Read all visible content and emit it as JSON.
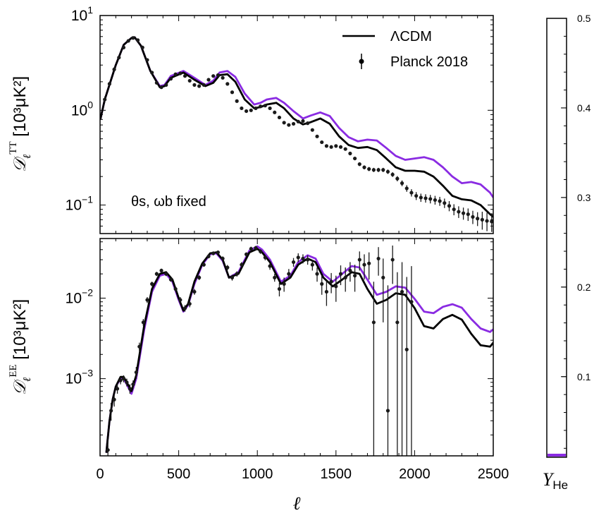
{
  "chart_data": [
    {
      "type": "line",
      "panel": "top",
      "ylabel_main": "𝒟",
      "ylabel_sub": "ℓ",
      "ylabel_sup": "TT",
      "ylabel_units": " [10³μK²]",
      "yscale": "log",
      "xlim": [
        0,
        2500
      ],
      "ylim": [
        0.05,
        10
      ],
      "yticks": [
        {
          "base": "10",
          "exp": "1",
          "value": 10
        },
        {
          "base": "10",
          "exp": "0",
          "value": 1
        },
        {
          "base": "10",
          "exp": "−1",
          "value": 0.1
        }
      ],
      "annotation": "θs, ωb fixed",
      "legend_position": "top-right",
      "legend": [
        {
          "label": "ΛCDM",
          "kind": "line"
        },
        {
          "label": "Planck 2018",
          "kind": "errorbar"
        }
      ],
      "series": [
        {
          "name": "ΛCDM",
          "color": "#000000",
          "x": [
            2,
            30,
            100,
            150,
            200,
            220,
            260,
            320,
            380,
            410,
            450,
            530,
            600,
            670,
            720,
            760,
            810,
            860,
            920,
            980,
            1020,
            1060,
            1120,
            1170,
            1230,
            1290,
            1340,
            1400,
            1460,
            1520,
            1580,
            1640,
            1700,
            1760,
            1820,
            1880,
            1940,
            2000,
            2060,
            2120,
            2180,
            2240,
            2300,
            2360,
            2420,
            2480,
            2500
          ],
          "y": [
            0.8,
            1.3,
            3.0,
            4.9,
            5.8,
            5.9,
            4.8,
            2.6,
            1.75,
            1.8,
            2.2,
            2.5,
            2.1,
            1.8,
            1.95,
            2.35,
            2.4,
            2.0,
            1.3,
            1.05,
            1.08,
            1.15,
            1.2,
            1.05,
            0.82,
            0.71,
            0.75,
            0.82,
            0.72,
            0.53,
            0.43,
            0.4,
            0.41,
            0.38,
            0.31,
            0.25,
            0.23,
            0.23,
            0.225,
            0.2,
            0.16,
            0.125,
            0.115,
            0.112,
            0.1,
            0.08,
            0.075
          ]
        },
        {
          "name": "",
          "color": "#8a2be2",
          "x": [
            2,
            30,
            100,
            150,
            200,
            220,
            260,
            320,
            380,
            410,
            450,
            530,
            600,
            670,
            720,
            760,
            810,
            860,
            920,
            980,
            1020,
            1060,
            1120,
            1170,
            1230,
            1290,
            1340,
            1400,
            1460,
            1520,
            1580,
            1640,
            1700,
            1760,
            1820,
            1880,
            1940,
            2000,
            2060,
            2120,
            2180,
            2240,
            2300,
            2360,
            2420,
            2480,
            2500
          ],
          "y": [
            0.8,
            1.3,
            3.0,
            4.9,
            5.8,
            5.9,
            4.8,
            2.6,
            1.8,
            1.85,
            2.3,
            2.6,
            2.2,
            1.85,
            2.05,
            2.5,
            2.6,
            2.25,
            1.5,
            1.15,
            1.2,
            1.3,
            1.35,
            1.2,
            0.98,
            0.82,
            0.88,
            0.95,
            0.87,
            0.65,
            0.52,
            0.47,
            0.49,
            0.48,
            0.4,
            0.33,
            0.3,
            0.31,
            0.32,
            0.3,
            0.25,
            0.2,
            0.17,
            0.175,
            0.165,
            0.135,
            0.12
          ]
        }
      ],
      "data_points": {
        "name": "Planck 2018",
        "color": "#1a1a1a",
        "x": [
          30,
          60,
          90,
          120,
          150,
          180,
          210,
          240,
          270,
          300,
          330,
          360,
          390,
          420,
          450,
          480,
          510,
          540,
          570,
          600,
          630,
          660,
          690,
          720,
          750,
          780,
          810,
          840,
          870,
          900,
          930,
          960,
          990,
          1020,
          1050,
          1080,
          1110,
          1140,
          1170,
          1200,
          1230,
          1260,
          1290,
          1320,
          1350,
          1380,
          1410,
          1440,
          1470,
          1500,
          1530,
          1560,
          1590,
          1620,
          1650,
          1680,
          1710,
          1740,
          1770,
          1800,
          1830,
          1860,
          1890,
          1920,
          1950,
          1980,
          2010,
          2040,
          2070,
          2100,
          2130,
          2160,
          2190,
          2220,
          2250,
          2280,
          2310,
          2340,
          2370,
          2400,
          2430,
          2460,
          2490
        ],
        "y": [
          1.3,
          1.9,
          2.7,
          3.6,
          4.6,
          5.4,
          5.8,
          5.5,
          4.6,
          3.4,
          2.5,
          1.95,
          1.75,
          1.85,
          2.15,
          2.4,
          2.45,
          2.3,
          2.05,
          1.85,
          1.8,
          1.85,
          2.1,
          2.3,
          2.35,
          2.2,
          1.9,
          1.55,
          1.25,
          1.05,
          0.98,
          1.0,
          1.05,
          1.1,
          1.12,
          1.05,
          0.95,
          0.84,
          0.74,
          0.7,
          0.72,
          0.76,
          0.77,
          0.73,
          0.62,
          0.53,
          0.46,
          0.42,
          0.41,
          0.42,
          0.41,
          0.39,
          0.35,
          0.31,
          0.27,
          0.25,
          0.24,
          0.235,
          0.235,
          0.235,
          0.225,
          0.21,
          0.19,
          0.17,
          0.15,
          0.135,
          0.125,
          0.12,
          0.118,
          0.116,
          0.113,
          0.11,
          0.105,
          0.098,
          0.09,
          0.085,
          0.082,
          0.08,
          0.075,
          0.072,
          0.07,
          0.068,
          0.067
        ],
        "err": [
          0.1,
          0.1,
          0.15,
          0.15,
          0.2,
          0.2,
          0.2,
          0.2,
          0.15,
          0.12,
          0.1,
          0.08,
          0.06,
          0.06,
          0.07,
          0.07,
          0.07,
          0.06,
          0.05,
          0.05,
          0.05,
          0.05,
          0.05,
          0.05,
          0.05,
          0.05,
          0.04,
          0.04,
          0.03,
          0.03,
          0.03,
          0.03,
          0.03,
          0.03,
          0.03,
          0.03,
          0.03,
          0.02,
          0.02,
          0.02,
          0.02,
          0.02,
          0.02,
          0.02,
          0.02,
          0.02,
          0.015,
          0.015,
          0.015,
          0.015,
          0.015,
          0.015,
          0.015,
          0.012,
          0.012,
          0.012,
          0.012,
          0.012,
          0.012,
          0.012,
          0.012,
          0.012,
          0.012,
          0.012,
          0.012,
          0.012,
          0.012,
          0.012,
          0.012,
          0.012,
          0.012,
          0.012,
          0.012,
          0.012,
          0.012,
          0.012,
          0.012,
          0.012,
          0.012,
          0.012,
          0.015,
          0.015,
          0.015
        ]
      }
    },
    {
      "type": "line",
      "panel": "bottom",
      "xlabel": "ℓ",
      "ylabel_main": "𝒟",
      "ylabel_sub": "ℓ",
      "ylabel_sup": "EE",
      "ylabel_units": " [10³μK²]",
      "yscale": "log",
      "xlim": [
        0,
        2500
      ],
      "ylim": [
        0.00011,
        0.055
      ],
      "xticks": [
        0,
        500,
        1000,
        1500,
        2000,
        2500
      ],
      "yticks": [
        {
          "base": "10",
          "exp": "−2",
          "value": 0.01
        },
        {
          "base": "10",
          "exp": "−3",
          "value": 0.001
        }
      ],
      "series": [
        {
          "name": "ΛCDM",
          "color": "#000000",
          "x": [
            40,
            60,
            80,
            100,
            130,
            150,
            170,
            200,
            230,
            280,
            330,
            380,
            420,
            460,
            500,
            530,
            560,
            600,
            650,
            700,
            740,
            780,
            820,
            880,
            950,
            1000,
            1030,
            1080,
            1150,
            1210,
            1260,
            1320,
            1370,
            1420,
            1480,
            1540,
            1600,
            1650,
            1700,
            1760,
            1820,
            1880,
            1940,
            2000,
            2060,
            2120,
            2180,
            2240,
            2300,
            2360,
            2420,
            2480,
            2500
          ],
          "y": [
            0.00012,
            0.0003,
            0.00055,
            0.0008,
            0.00105,
            0.00105,
            0.0009,
            0.0007,
            0.0011,
            0.0045,
            0.013,
            0.02,
            0.021,
            0.017,
            0.01,
            0.007,
            0.0085,
            0.016,
            0.027,
            0.036,
            0.037,
            0.03,
            0.018,
            0.02,
            0.037,
            0.041,
            0.037,
            0.028,
            0.015,
            0.018,
            0.026,
            0.031,
            0.028,
            0.018,
            0.014,
            0.017,
            0.021,
            0.02,
            0.013,
            0.0085,
            0.0095,
            0.0115,
            0.011,
            0.0075,
            0.0045,
            0.0042,
            0.0055,
            0.0062,
            0.0054,
            0.0036,
            0.0026,
            0.0025,
            0.0028
          ]
        },
        {
          "name": "",
          "color": "#8a2be2",
          "x": [
            40,
            60,
            80,
            100,
            130,
            150,
            170,
            200,
            230,
            280,
            330,
            380,
            420,
            460,
            500,
            530,
            560,
            600,
            650,
            700,
            740,
            780,
            820,
            880,
            950,
            1000,
            1030,
            1080,
            1150,
            1210,
            1260,
            1320,
            1370,
            1420,
            1480,
            1540,
            1600,
            1650,
            1700,
            1760,
            1820,
            1880,
            1940,
            2000,
            2060,
            2120,
            2180,
            2240,
            2300,
            2360,
            2420,
            2480,
            2500
          ],
          "y": [
            0.00012,
            0.0003,
            0.00055,
            0.0008,
            0.001,
            0.001,
            0.00085,
            0.00065,
            0.001,
            0.004,
            0.012,
            0.019,
            0.02,
            0.016,
            0.0095,
            0.0068,
            0.0082,
            0.015,
            0.026,
            0.035,
            0.036,
            0.029,
            0.018,
            0.021,
            0.039,
            0.044,
            0.04,
            0.03,
            0.016,
            0.019,
            0.028,
            0.034,
            0.031,
            0.02,
            0.016,
            0.02,
            0.025,
            0.024,
            0.017,
            0.011,
            0.012,
            0.014,
            0.0135,
            0.0098,
            0.0068,
            0.0065,
            0.0078,
            0.0084,
            0.0076,
            0.0055,
            0.0042,
            0.0038,
            0.0041
          ]
        }
      ],
      "data_points": {
        "name": "Planck 2018",
        "color": "#1a1a1a",
        "x": [
          50,
          70,
          90,
          110,
          130,
          150,
          170,
          190,
          210,
          230,
          250,
          275,
          300,
          330,
          360,
          390,
          420,
          450,
          480,
          510,
          540,
          570,
          600,
          630,
          660,
          690,
          720,
          750,
          780,
          810,
          840,
          870,
          900,
          930,
          960,
          990,
          1020,
          1050,
          1080,
          1110,
          1140,
          1170,
          1200,
          1230,
          1260,
          1290,
          1320,
          1350,
          1380,
          1410,
          1440,
          1470,
          1500,
          1530,
          1560,
          1590,
          1620,
          1650,
          1680,
          1710,
          1740,
          1770,
          1800,
          1830,
          1860,
          1890,
          1920,
          1950,
          1980
        ],
        "y": [
          0.00013,
          0.0004,
          0.00055,
          0.00075,
          0.00095,
          0.001,
          0.0009,
          0.00075,
          0.00085,
          0.0012,
          0.0025,
          0.005,
          0.0095,
          0.015,
          0.02,
          0.022,
          0.02,
          0.017,
          0.013,
          0.0095,
          0.0075,
          0.0085,
          0.012,
          0.018,
          0.026,
          0.033,
          0.036,
          0.037,
          0.031,
          0.024,
          0.018,
          0.02,
          0.026,
          0.035,
          0.041,
          0.042,
          0.038,
          0.032,
          0.025,
          0.018,
          0.013,
          0.015,
          0.02,
          0.028,
          0.032,
          0.031,
          0.03,
          0.026,
          0.02,
          0.015,
          0.012,
          0.016,
          0.014,
          0.02,
          0.018,
          0.022,
          0.019,
          0.03,
          0.026,
          0.027,
          0.005,
          0.031,
          0.018,
          0.0004,
          0.03,
          0.005,
          0.012,
          0.0023,
          0.009
        ],
        "err": [
          5e-05,
          0.0001,
          0.0001,
          0.0001,
          0.0001,
          0.0001,
          0.0001,
          0.0001,
          0.0001,
          0.0002,
          0.0003,
          0.0005,
          0.0008,
          0.001,
          0.0012,
          0.0012,
          0.0012,
          0.001,
          0.0009,
          0.0008,
          0.0007,
          0.0008,
          0.001,
          0.0012,
          0.0015,
          0.0018,
          0.002,
          0.002,
          0.002,
          0.0018,
          0.0015,
          0.0015,
          0.002,
          0.002,
          0.0025,
          0.0025,
          0.0025,
          0.0025,
          0.0025,
          0.002,
          0.0025,
          0.003,
          0.003,
          0.0035,
          0.004,
          0.004,
          0.004,
          0.004,
          0.004,
          0.004,
          0.004,
          0.0045,
          0.005,
          0.0055,
          0.006,
          0.006,
          0.007,
          0.008,
          0.009,
          0.01,
          0.011,
          0.012,
          0.013,
          0.014,
          0.015,
          0.016,
          0.016,
          0.016,
          0.016
        ]
      }
    }
  ],
  "colorbar": {
    "label_main": "Y",
    "label_sub": "He",
    "range": [
      0.01,
      0.5
    ],
    "ticks": [
      "0.1",
      "0.2",
      "0.3",
      "0.4",
      "0.5"
    ],
    "current_value": 0.01,
    "marker_color": "#8a2be2"
  }
}
